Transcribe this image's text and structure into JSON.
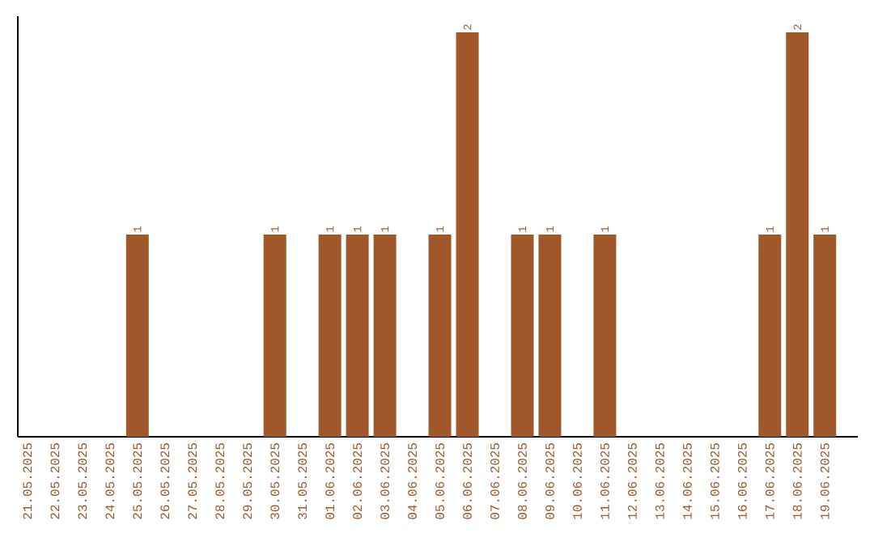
{
  "chart_data": {
    "type": "bar",
    "categories": [
      "21.05.2025",
      "22.05.2025",
      "23.05.2025",
      "24.05.2025",
      "25.05.2025",
      "26.05.2025",
      "27.05.2025",
      "28.05.2025",
      "29.05.2025",
      "30.05.2025",
      "31.05.2025",
      "01.06.2025",
      "02.06.2025",
      "03.06.2025",
      "04.06.2025",
      "05.06.2025",
      "06.06.2025",
      "07.06.2025",
      "08.06.2025",
      "09.06.2025",
      "10.06.2025",
      "11.06.2025",
      "12.06.2025",
      "13.06.2025",
      "14.06.2025",
      "15.06.2025",
      "16.06.2025",
      "17.06.2025",
      "18.06.2025",
      "19.06.2025"
    ],
    "values": [
      0,
      0,
      0,
      0,
      1,
      0,
      0,
      0,
      0,
      1,
      0,
      1,
      1,
      1,
      0,
      1,
      2,
      0,
      1,
      1,
      0,
      1,
      0,
      0,
      0,
      0,
      0,
      1,
      2,
      1
    ],
    "value_labels": [
      null,
      null,
      null,
      null,
      "1",
      null,
      null,
      null,
      null,
      "1",
      null,
      "1",
      "1",
      "1",
      null,
      "1",
      "2",
      null,
      "1",
      "1",
      null,
      "1",
      null,
      null,
      null,
      null,
      null,
      "1",
      "2",
      "1"
    ],
    "color": "#a0572a"
  }
}
